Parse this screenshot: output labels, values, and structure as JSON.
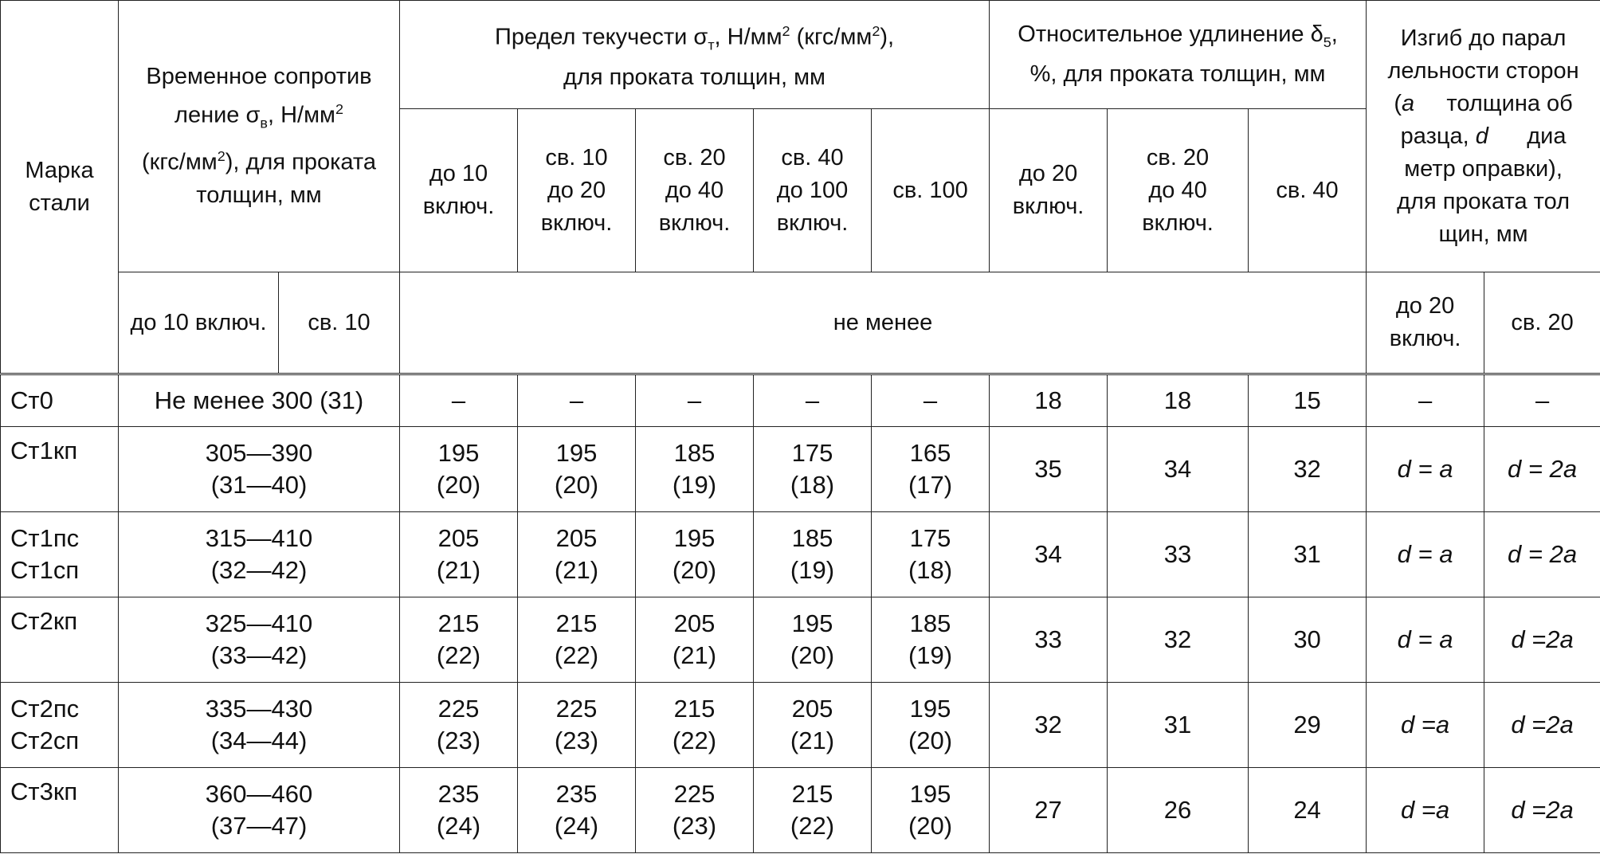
{
  "header": {
    "grade": "Марка\nстали",
    "tensile": [
      "Временное сопротив",
      "ление σ",
      "в",
      ", Н/мм",
      "2",
      "(кгс/мм",
      "2",
      "), для проката",
      "толщин, мм"
    ],
    "yield": [
      "Предел текучести σ",
      "т",
      ", Н/мм",
      "2",
      " (кгс/мм",
      "2",
      "),",
      "для проката толщин, мм"
    ],
    "elong": [
      "Относительное удлинение δ",
      "5",
      ",",
      "%, для проката толщин, мм"
    ],
    "bend": [
      "Изгиб до парал",
      "лельности сторон",
      "(",
      "a",
      "     толщина об",
      "разца, ",
      "d",
      "      диа",
      "метр оправки),",
      "для проката тол",
      "щин, мм"
    ],
    "yield_cols": [
      "до 10\nвключ.",
      "св. 10\nдо 20\nвключ.",
      "св. 20\nдо 40\nвключ.",
      "св. 40\nдо 100\nвключ.",
      "св. 100"
    ],
    "elong_cols": [
      "до 20\nвключ.",
      "св. 20\nдо 40\nвключ.",
      "св. 40"
    ],
    "tensile_cols": [
      "до 10 включ.",
      "св. 10"
    ],
    "not_less": "не менее",
    "bend_cols": [
      "до 20\nвключ.",
      "св. 20"
    ]
  },
  "rows": [
    {
      "grade": "Ст0",
      "tensile": "Не менее 300 (31)",
      "yield": [
        "–",
        "–",
        "–",
        "–",
        "–"
      ],
      "elong": [
        "18",
        "18",
        "15"
      ],
      "bend": [
        "–",
        "–"
      ]
    },
    {
      "grade": "Ст1кп",
      "tensile": "305—390\n(31—40)",
      "yield": [
        "195\n(20)",
        "195\n(20)",
        "185\n(19)",
        "175\n(18)",
        "165\n(17)"
      ],
      "elong": [
        "35",
        "34",
        "32"
      ],
      "bend": [
        "d = a",
        "d = 2a"
      ]
    },
    {
      "grade": "Ст1пс\nСт1сп",
      "tensile": "315—410\n(32—42)",
      "yield": [
        "205\n(21)",
        "205\n(21)",
        "195\n(20)",
        "185\n(19)",
        "175\n(18)"
      ],
      "elong": [
        "34",
        "33",
        "31"
      ],
      "bend": [
        "d = a",
        "d = 2a"
      ]
    },
    {
      "grade": "Ст2кп",
      "tensile": "325—410\n(33—42)",
      "yield": [
        "215\n(22)",
        "215\n(22)",
        "205\n(21)",
        "195\n(20)",
        "185\n(19)"
      ],
      "elong": [
        "33",
        "32",
        "30"
      ],
      "bend": [
        "d = a",
        "d =2a"
      ]
    },
    {
      "grade": "Ст2пс\nСт2сп",
      "tensile": "335—430\n(34—44)",
      "yield": [
        "225\n(23)",
        "225\n(23)",
        "215\n(22)",
        "205\n(21)",
        "195\n(20)"
      ],
      "elong": [
        "32",
        "31",
        "29"
      ],
      "bend": [
        "d =a",
        "d =2a"
      ]
    },
    {
      "grade": "Ст3кп",
      "tensile": "360—460\n(37—47)",
      "yield": [
        "235\n(24)",
        "235\n(24)",
        "225\n(23)",
        "215\n(22)",
        "195\n(20)"
      ],
      "elong": [
        "27",
        "26",
        "24"
      ],
      "bend": [
        "d =a",
        "d =2a"
      ]
    }
  ]
}
